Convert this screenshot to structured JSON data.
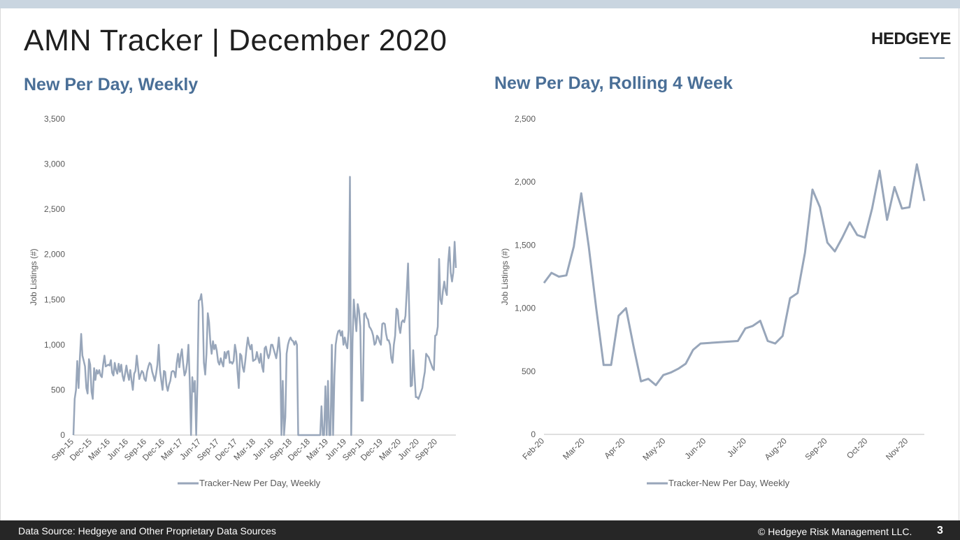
{
  "slide": {
    "title": "AMN Tracker | December 2020",
    "logo": "HEDGEYE",
    "page_number": "3"
  },
  "footer": {
    "source": "Data Source: Hedgeye and Other Proprietary Data Sources",
    "copyright": "© Hedgeye Risk Management LLC."
  },
  "colors": {
    "series": "#98a6ba",
    "subtitle": "#4a6f97",
    "footer_bg": "#262626"
  },
  "chart_data": [
    {
      "type": "line",
      "title": "New Per Day, Weekly",
      "ylabel": "Job Listings (#)",
      "ylim": [
        0,
        3500
      ],
      "yticks": [
        0,
        500,
        1000,
        1500,
        2000,
        2500,
        3000,
        3500
      ],
      "ytick_labels": [
        "0",
        "500",
        "1,000",
        "1,500",
        "2,000",
        "2,500",
        "3,000",
        "3,500"
      ],
      "xtick_labels": [
        "Sep-15",
        "Dec-15",
        "Mar-16",
        "Jun-16",
        "Sep-16",
        "Dec-16",
        "Mar-17",
        "Jun-17",
        "Sep-17",
        "Dec-17",
        "Mar-18",
        "Jun-18",
        "Sep-18",
        "Dec-18",
        "Mar-19",
        "Jun-19",
        "Sep-19",
        "Dec-19",
        "Mar-20",
        "Jun-20",
        "Sep-20"
      ],
      "legend": "bottom",
      "series": [
        {
          "name": "Tracker-New Per Day, Weekly",
          "values": [
            0,
            400,
            500,
            820,
            520,
            850,
            1120,
            880,
            820,
            760,
            520,
            460,
            840,
            780,
            480,
            400,
            740,
            610,
            720,
            680,
            720,
            660,
            640,
            780,
            880,
            760,
            770,
            780,
            770,
            830,
            690,
            660,
            800,
            720,
            680,
            790,
            700,
            780,
            660,
            600,
            680,
            770,
            680,
            610,
            720,
            600,
            500,
            680,
            710,
            880,
            750,
            620,
            670,
            710,
            690,
            620,
            600,
            700,
            760,
            800,
            780,
            700,
            650,
            600,
            680,
            780,
            1000,
            720,
            600,
            500,
            710,
            700,
            550,
            490,
            560,
            600,
            700,
            710,
            700,
            640,
            800,
            900,
            750,
            880,
            950,
            780,
            660,
            700,
            800,
            1000,
            620,
            0,
            640,
            480,
            600,
            0,
            580,
            1490,
            1500,
            1560,
            1400,
            800,
            670,
            900,
            1350,
            1250,
            1020,
            900,
            1040,
            950,
            1000,
            930,
            810,
            780,
            850,
            800,
            760,
            920,
            850,
            920,
            930,
            800,
            810,
            790,
            820,
            1000,
            920,
            700,
            520,
            900,
            880,
            750,
            700,
            820,
            960,
            1080,
            1000,
            950,
            1000,
            820,
            830,
            840,
            920,
            850,
            800,
            900,
            760,
            700,
            960,
            980,
            900,
            850,
            900,
            1000,
            1000,
            950,
            900,
            850,
            950,
            1080,
            900,
            0,
            600,
            0,
            200,
            900,
            1000,
            1050,
            1080,
            1050,
            1040,
            1000,
            1040,
            1000,
            0,
            0,
            0,
            0,
            0,
            0,
            0,
            0,
            0,
            0,
            0,
            0,
            0,
            0,
            0,
            0,
            0,
            0,
            320,
            0,
            0,
            540,
            0,
            600,
            0,
            0,
            1000,
            0,
            650,
            1000,
            1100,
            1150,
            1160,
            1100,
            1150,
            1000,
            1080,
            1000,
            960,
            1160,
            2860,
            0,
            1040,
            1500,
            1300,
            1150,
            1450,
            1380,
            1200,
            380,
            380,
            1340,
            1350,
            1300,
            1280,
            1200,
            1180,
            1150,
            1100,
            1000,
            1020,
            1100,
            1080,
            1030,
            1000,
            1230,
            1240,
            1230,
            1120,
            1050,
            1050,
            1000,
            850,
            800,
            1000,
            1100,
            1400,
            1380,
            1200,
            1130,
            1250,
            1270,
            1250,
            1320,
            1600,
            1900,
            1300,
            540,
            550,
            940,
            660,
            420,
            420,
            400,
            440,
            480,
            520,
            620,
            700,
            900,
            880,
            860,
            820,
            780,
            740,
            720,
            1100,
            1110,
            1200,
            1950,
            1500,
            1450,
            1600,
            1700,
            1600,
            1550,
            1900,
            2080,
            1800,
            1700,
            1800,
            2140,
            1850
          ]
        }
      ]
    },
    {
      "type": "line",
      "title": "New Per Day, Rolling 4 Week",
      "ylabel": "Job Listings (#)",
      "ylim": [
        0,
        2500
      ],
      "yticks": [
        0,
        500,
        1000,
        1500,
        2000,
        2500
      ],
      "ytick_labels": [
        "0",
        "500",
        "1,000",
        "1,500",
        "2,000",
        "2,500"
      ],
      "xtick_labels": [
        "Feb-20",
        "Mar-20",
        "Apr-20",
        "May-20",
        "Jun-20",
        "Jul-20",
        "Aug-20",
        "Sep-20",
        "Oct-20",
        "Nov-20"
      ],
      "legend": "bottom",
      "series": [
        {
          "name": "Tracker-New Per Day, Weekly",
          "x": [
            0,
            0.25,
            0.5,
            0.75,
            1.0,
            1.25,
            1.5,
            1.75,
            2.0,
            2.25,
            2.5,
            2.75,
            3.0,
            3.25,
            3.5,
            3.75,
            4.0,
            4.25,
            4.5,
            4.75,
            5.0,
            5.25,
            6.5,
            6.75,
            7.0,
            7.25,
            7.5,
            7.75,
            8.0,
            8.25,
            8.5,
            8.75,
            9.0,
            9.25,
            9.5,
            9.75,
            10.0,
            10.25,
            10.5,
            10.75,
            11.0,
            11.25,
            11.5,
            11.75,
            12.0,
            12.25,
            12.5,
            12.75
          ],
          "values": [
            1200,
            1280,
            1250,
            1260,
            1490,
            1910,
            1490,
            1000,
            550,
            550,
            940,
            1000,
            700,
            420,
            440,
            390,
            470,
            490,
            520,
            560,
            670,
            720,
            740,
            840,
            860,
            900,
            740,
            720,
            780,
            1080,
            1120,
            1440,
            1940,
            1800,
            1520,
            1450,
            1560,
            1680,
            1580,
            1560,
            1790,
            2090,
            1700,
            1960,
            1790,
            1800,
            2140,
            1850
          ],
          "note_x_unit": "month index from Feb-20"
        }
      ]
    }
  ]
}
